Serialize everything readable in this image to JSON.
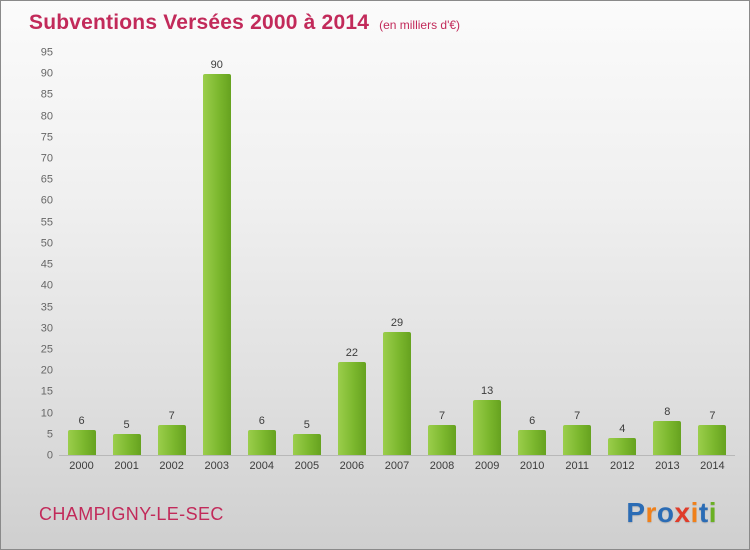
{
  "title": "Subventions Versées 2000 à 2014",
  "subtitle": "(en milliers d'€)",
  "footer": {
    "commune": "CHAMPIGNY-LE-SEC"
  },
  "logo": {
    "name": "Proxiti",
    "letters": [
      {
        "ch": "P",
        "color": "#2b6cb5"
      },
      {
        "ch": "r",
        "color": "#f0801a"
      },
      {
        "ch": "o",
        "color": "#2b6cb5"
      },
      {
        "ch": "x",
        "color": "#e03c2a"
      },
      {
        "ch": "i",
        "color": "#f0801a"
      },
      {
        "ch": "t",
        "color": "#2b6cb5"
      },
      {
        "ch": "i",
        "color": "#6ab023"
      }
    ]
  },
  "colors": {
    "title": "#c22a5a",
    "bar": "#7cb82e",
    "value_label": "#3c3c3c",
    "axis_label": "#666666"
  },
  "chart_data": {
    "type": "bar",
    "title": "Subventions Versées 2000 à 2014 (en milliers d'€)",
    "categories": [
      "2000",
      "2001",
      "2002",
      "2003",
      "2004",
      "2005",
      "2006",
      "2007",
      "2008",
      "2009",
      "2010",
      "2011",
      "2012",
      "2013",
      "2014"
    ],
    "values": [
      6,
      5,
      7,
      90,
      6,
      5,
      22,
      29,
      7,
      13,
      6,
      7,
      4,
      8,
      7
    ],
    "xlabel": "",
    "ylabel": "",
    "ylim": [
      0,
      95
    ],
    "ytick_step": 5,
    "grid": false,
    "legend": false,
    "value_labels_shown": true
  }
}
